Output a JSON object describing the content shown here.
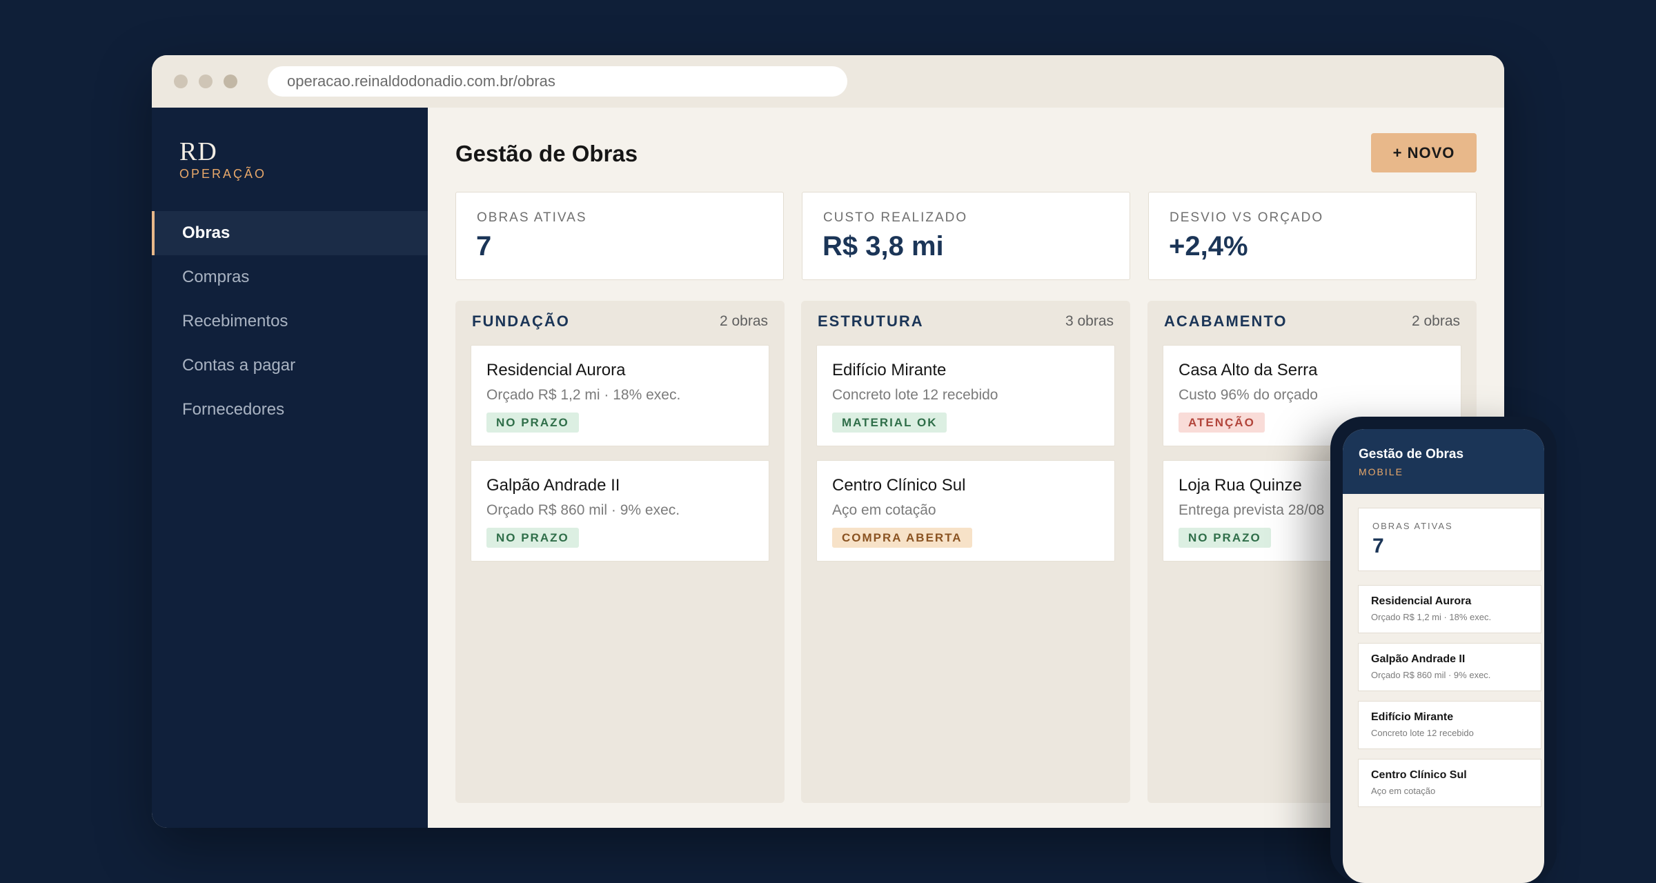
{
  "browser": {
    "url": "operacao.reinaldodonadio.com.br/obras"
  },
  "sidebar": {
    "logo": "RD",
    "logo_sub": "OPERAÇÃO",
    "items": [
      {
        "label": "Obras",
        "active": true
      },
      {
        "label": "Compras"
      },
      {
        "label": "Recebimentos"
      },
      {
        "label": "Contas a pagar"
      },
      {
        "label": "Fornecedores"
      }
    ]
  },
  "main": {
    "title": "Gestão de Obras",
    "new_button": "+ NOVO",
    "kpis": [
      {
        "label": "OBRAS ATIVAS",
        "value": "7"
      },
      {
        "label": "CUSTO REALIZADO",
        "value": "R$ 3,8 mi"
      },
      {
        "label": "DESVIO VS ORÇADO",
        "value": "+2,4%"
      }
    ],
    "columns": [
      {
        "title": "FUNDAÇÃO",
        "count": "2 obras",
        "cards": [
          {
            "title": "Residencial Aurora",
            "sub": "Orçado R$ 1,2 mi · 18% exec.",
            "badge": "NO PRAZO",
            "badge_color": "green"
          },
          {
            "title": "Galpão Andrade II",
            "sub": "Orçado R$ 860 mil · 9% exec.",
            "badge": "NO PRAZO",
            "badge_color": "green"
          }
        ]
      },
      {
        "title": "ESTRUTURA",
        "count": "3 obras",
        "cards": [
          {
            "title": "Edifício Mirante",
            "sub": "Concreto lote 12 recebido",
            "badge": "MATERIAL OK",
            "badge_color": "green"
          },
          {
            "title": "Centro Clínico Sul",
            "sub": "Aço em cotação",
            "badge": "COMPRA ABERTA",
            "badge_color": "orange"
          }
        ]
      },
      {
        "title": "ACABAMENTO",
        "count": "2 obras",
        "cards": [
          {
            "title": "Casa Alto da Serra",
            "sub": "Custo 96% do orçado",
            "badge": "ATENÇÃO",
            "badge_color": "red"
          },
          {
            "title": "Loja Rua Quinze",
            "sub": "Entrega prevista 28/08",
            "badge": "NO PRAZO",
            "badge_color": "green"
          }
        ]
      }
    ]
  },
  "mobile": {
    "title": "Gestão de Obras",
    "sub": "MOBILE",
    "kpi_label": "OBRAS ATIVAS",
    "kpi_value": "7",
    "cards": [
      {
        "title": "Residencial Aurora",
        "sub": "Orçado R$ 1,2 mi · 18% exec."
      },
      {
        "title": "Galpão Andrade II",
        "sub": "Orçado R$ 860 mil · 9% exec."
      },
      {
        "title": "Edifício Mirante",
        "sub": "Concreto lote 12 recebido"
      },
      {
        "title": "Centro Clínico Sul",
        "sub": "Aço em cotação"
      }
    ]
  }
}
